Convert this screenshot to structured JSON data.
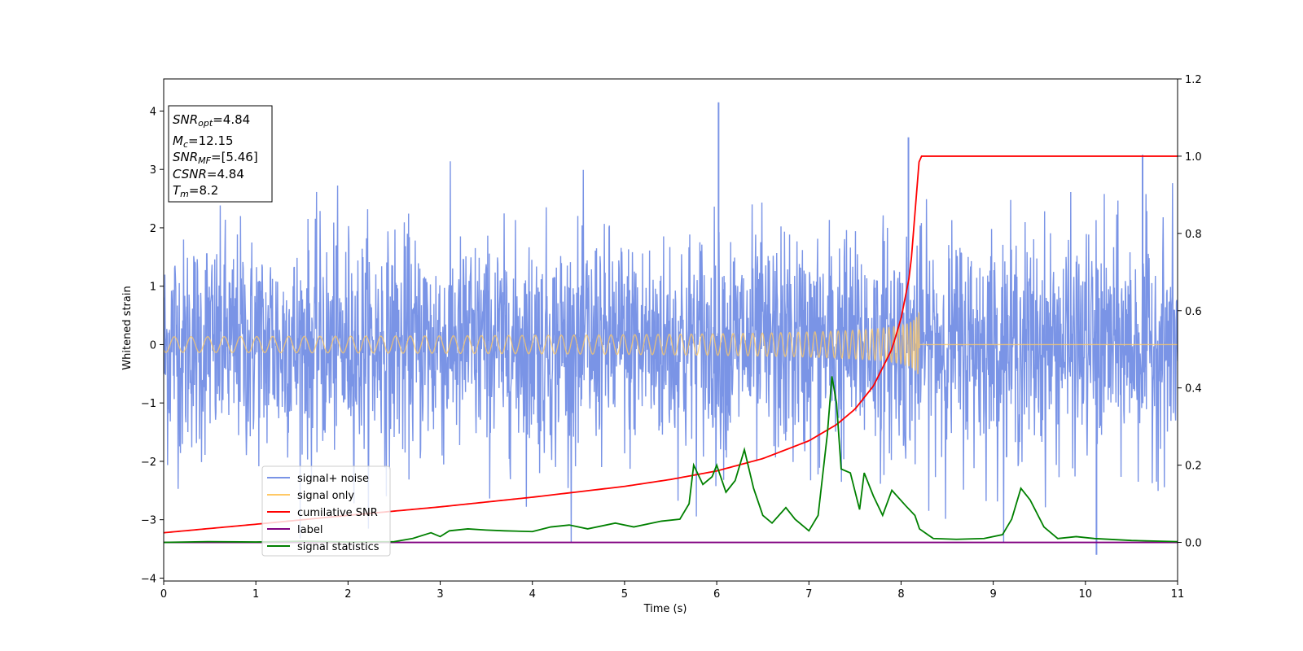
{
  "chart_data": {
    "type": "line",
    "xlabel": "Time (s)",
    "ylabel": "Whitened strain",
    "xlim": [
      0,
      11
    ],
    "ylim": [
      -4.05,
      4.55
    ],
    "y2lim": [
      -0.1,
      1.2
    ],
    "xticks": [
      "0",
      "1",
      "2",
      "3",
      "4",
      "5",
      "6",
      "7",
      "8",
      "9",
      "10",
      "11"
    ],
    "yticks": [
      "−4",
      "−3",
      "−2",
      "−1",
      "0",
      "1",
      "2",
      "3",
      "4"
    ],
    "y2ticks": [
      "0.0",
      "0.2",
      "0.4",
      "0.6",
      "0.8",
      "1.0",
      "1.2"
    ],
    "grid": false,
    "legend_position": "lower-left",
    "info_box": [
      {
        "base": "SNR",
        "sub": "opt",
        "value": "=4.84"
      },
      {
        "base": "M",
        "sub": "c",
        "value": "=12.15"
      },
      {
        "base": "SNR",
        "sub": "MF",
        "value": "=[5.46]"
      },
      {
        "base": "CSNR",
        "sub": "",
        "value": "=4.84"
      },
      {
        "base": "T",
        "sub": "m",
        "value": "=8.2"
      }
    ],
    "series": [
      {
        "name": "signal+ noise",
        "color": "#7a94e6",
        "axis": "left",
        "description": "whitened noise plus chirp, roughly ±2 with spikes up to 4.15 near t=6.0 and down to −3.6 near t=10.1"
      },
      {
        "name": "signal only",
        "color": "#ffc966",
        "axis": "left",
        "chirp_end_time": 8.2,
        "chirp_peak_amplitude": 0.6
      },
      {
        "name": "cumilative SNR",
        "color": "#ff0000",
        "axis": "right",
        "x": [
          0,
          1,
          2,
          3,
          4,
          5,
          5.5,
          6,
          6.5,
          7,
          7.3,
          7.5,
          7.7,
          7.9,
          8.0,
          8.1,
          8.2,
          11
        ],
        "y": [
          0.025,
          0.047,
          0.07,
          0.092,
          0.117,
          0.145,
          0.163,
          0.185,
          0.217,
          0.263,
          0.305,
          0.345,
          0.405,
          0.5,
          0.58,
          0.7,
          1.0,
          1.0
        ]
      },
      {
        "name": "label",
        "color": "#800080",
        "axis": "right",
        "x": [
          0,
          11
        ],
        "y": [
          0,
          0
        ]
      },
      {
        "name": "signal statistics",
        "color": "#008000",
        "axis": "right",
        "x": [
          0,
          0.5,
          1,
          1.5,
          2,
          2.5,
          2.7,
          2.9,
          3.0,
          3.1,
          3.3,
          3.5,
          3.7,
          4.0,
          4.2,
          4.4,
          4.6,
          4.9,
          5.1,
          5.4,
          5.6,
          5.7,
          5.75,
          5.85,
          5.95,
          6.0,
          6.1,
          6.2,
          6.3,
          6.4,
          6.5,
          6.6,
          6.75,
          6.85,
          7.0,
          7.1,
          7.2,
          7.25,
          7.3,
          7.35,
          7.45,
          7.55,
          7.6,
          7.7,
          7.8,
          7.9,
          8.05,
          8.15,
          8.2,
          8.35,
          8.6,
          8.9,
          9.1,
          9.2,
          9.3,
          9.4,
          9.55,
          9.7,
          9.9,
          10.1,
          10.5,
          11
        ],
        "y": [
          0.0,
          0.002,
          0.001,
          0.003,
          0.001,
          0.002,
          0.01,
          0.025,
          0.015,
          0.03,
          0.035,
          0.032,
          0.03,
          0.028,
          0.04,
          0.045,
          0.035,
          0.05,
          0.04,
          0.055,
          0.06,
          0.1,
          0.2,
          0.15,
          0.17,
          0.2,
          0.13,
          0.16,
          0.24,
          0.14,
          0.07,
          0.05,
          0.09,
          0.06,
          0.03,
          0.07,
          0.28,
          0.43,
          0.36,
          0.19,
          0.18,
          0.085,
          0.18,
          0.12,
          0.07,
          0.135,
          0.095,
          0.07,
          0.035,
          0.01,
          0.008,
          0.01,
          0.02,
          0.06,
          0.14,
          0.11,
          0.04,
          0.01,
          0.015,
          0.01,
          0.005,
          0.002
        ]
      }
    ]
  }
}
